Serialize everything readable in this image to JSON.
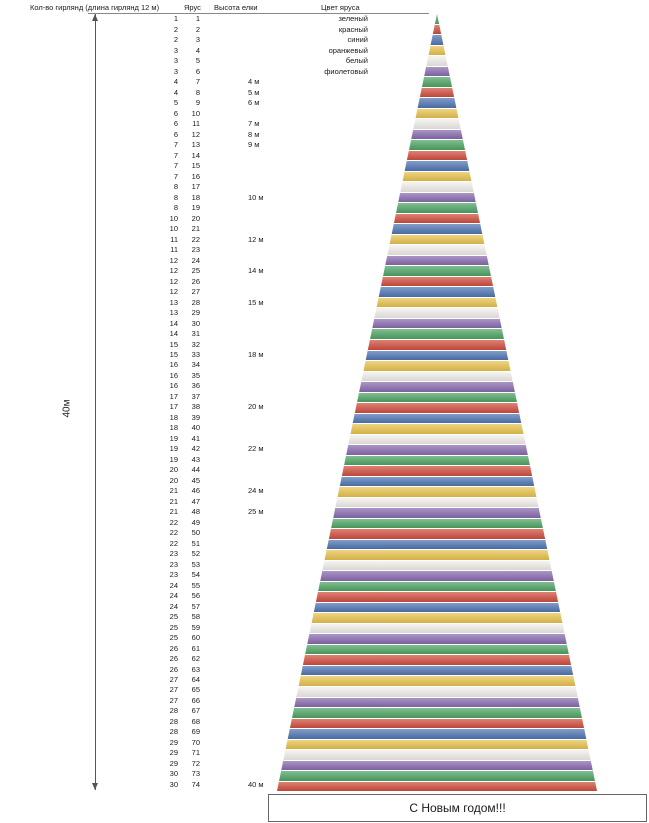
{
  "header": {
    "count_col": "Кол-во гирлянд (длина гирлянд 12 м)",
    "tier_col": "Ярус",
    "height_col": "Высота елки",
    "color_col": "Цвет яруса"
  },
  "dimension": {
    "label": "40м"
  },
  "legend": {
    "colors": [
      {
        "name": "зеленый",
        "hex": "#4fa566"
      },
      {
        "name": "красный",
        "hex": "#d14f3f"
      },
      {
        "name": "синий",
        "hex": "#5077b4"
      },
      {
        "name": "оранжевый",
        "hex": "#e9c44f"
      },
      {
        "name": "белый",
        "hex": "#f2efec"
      },
      {
        "name": "фиолетовый",
        "hex": "#8a6cb0"
      }
    ]
  },
  "banner": {
    "text": "С Новым годом!!!"
  },
  "tree": {
    "tier_count": 74
  },
  "chart_data": {
    "type": "table",
    "columns": [
      "Кол-во гирлянд (длина гирлянд 12 м)",
      "Ярус",
      "Высота елки",
      "Цвет яруса"
    ],
    "rows": [
      [
        1,
        1,
        ""
      ],
      [
        2,
        2,
        ""
      ],
      [
        2,
        3,
        ""
      ],
      [
        3,
        4,
        ""
      ],
      [
        3,
        5,
        ""
      ],
      [
        3,
        6,
        ""
      ],
      [
        4,
        7,
        "4 м"
      ],
      [
        4,
        8,
        "5 м"
      ],
      [
        5,
        9,
        "6 м"
      ],
      [
        6,
        10,
        ""
      ],
      [
        6,
        11,
        "7 м"
      ],
      [
        6,
        12,
        "8 м"
      ],
      [
        7,
        13,
        "9 м"
      ],
      [
        7,
        14,
        ""
      ],
      [
        7,
        15,
        ""
      ],
      [
        7,
        16,
        ""
      ],
      [
        8,
        17,
        ""
      ],
      [
        8,
        18,
        "10 м"
      ],
      [
        8,
        19,
        ""
      ],
      [
        10,
        20,
        ""
      ],
      [
        10,
        21,
        ""
      ],
      [
        11,
        22,
        "12 м"
      ],
      [
        11,
        23,
        ""
      ],
      [
        12,
        24,
        ""
      ],
      [
        12,
        25,
        "14 м"
      ],
      [
        12,
        26,
        ""
      ],
      [
        12,
        27,
        ""
      ],
      [
        13,
        28,
        "15 м"
      ],
      [
        13,
        29,
        ""
      ],
      [
        14,
        30,
        ""
      ],
      [
        14,
        31,
        ""
      ],
      [
        15,
        32,
        ""
      ],
      [
        15,
        33,
        "18 м"
      ],
      [
        16,
        34,
        ""
      ],
      [
        16,
        35,
        ""
      ],
      [
        16,
        36,
        ""
      ],
      [
        17,
        37,
        ""
      ],
      [
        17,
        38,
        "20 м"
      ],
      [
        18,
        39,
        ""
      ],
      [
        18,
        40,
        ""
      ],
      [
        19,
        41,
        ""
      ],
      [
        19,
        42,
        "22 м"
      ],
      [
        19,
        43,
        ""
      ],
      [
        20,
        44,
        ""
      ],
      [
        20,
        45,
        ""
      ],
      [
        21,
        46,
        "24 м"
      ],
      [
        21,
        47,
        ""
      ],
      [
        21,
        48,
        "25 м"
      ],
      [
        22,
        49,
        ""
      ],
      [
        22,
        50,
        ""
      ],
      [
        22,
        51,
        ""
      ],
      [
        23,
        52,
        ""
      ],
      [
        23,
        53,
        ""
      ],
      [
        23,
        54,
        ""
      ],
      [
        24,
        55,
        ""
      ],
      [
        24,
        56,
        ""
      ],
      [
        24,
        57,
        ""
      ],
      [
        25,
        58,
        ""
      ],
      [
        25,
        59,
        ""
      ],
      [
        25,
        60,
        ""
      ],
      [
        26,
        61,
        ""
      ],
      [
        26,
        62,
        ""
      ],
      [
        26,
        63,
        ""
      ],
      [
        27,
        64,
        ""
      ],
      [
        27,
        65,
        ""
      ],
      [
        27,
        66,
        ""
      ],
      [
        28,
        67,
        ""
      ],
      [
        28,
        68,
        ""
      ],
      [
        28,
        69,
        ""
      ],
      [
        29,
        70,
        ""
      ],
      [
        29,
        71,
        ""
      ],
      [
        29,
        72,
        ""
      ],
      [
        30,
        73,
        ""
      ],
      [
        30,
        74,
        "40 м"
      ]
    ]
  }
}
